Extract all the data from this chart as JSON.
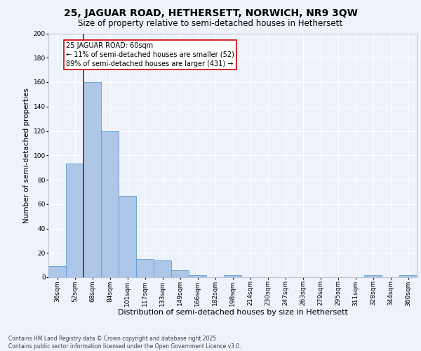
{
  "title1": "25, JAGUAR ROAD, HETHERSETT, NORWICH, NR9 3QW",
  "title2": "Size of property relative to semi-detached houses in Hethersett",
  "categories": [
    "36sqm",
    "52sqm",
    "68sqm",
    "84sqm",
    "101sqm",
    "117sqm",
    "133sqm",
    "149sqm",
    "166sqm",
    "182sqm",
    "198sqm",
    "214sqm",
    "230sqm",
    "247sqm",
    "263sqm",
    "279sqm",
    "295sqm",
    "311sqm",
    "328sqm",
    "344sqm",
    "360sqm"
  ],
  "values": [
    9,
    93,
    160,
    120,
    67,
    15,
    14,
    6,
    2,
    0,
    2,
    0,
    0,
    0,
    0,
    0,
    0,
    0,
    2,
    0,
    2
  ],
  "bar_color": "#aec6e8",
  "bar_edge_color": "#5a9fd4",
  "xlabel": "Distribution of semi-detached houses by size in Hethersett",
  "ylabel": "Number of semi-detached properties",
  "ylim": [
    0,
    200
  ],
  "yticks": [
    0,
    20,
    40,
    60,
    80,
    100,
    120,
    140,
    160,
    180,
    200
  ],
  "vline_x": 1.5,
  "vline_color": "#cc0000",
  "annotation_title": "25 JAGUAR ROAD: 60sqm",
  "annotation_line1": "← 11% of semi-detached houses are smaller (52)",
  "annotation_line2": "89% of semi-detached houses are larger (431) →",
  "annotation_box_color": "#cc0000",
  "footer1": "Contains HM Land Registry data © Crown copyright and database right 2025.",
  "footer2": "Contains public sector information licensed under the Open Government Licence v3.0.",
  "background_color": "#eef2fa",
  "grid_color": "#ffffff",
  "title1_fontsize": 10,
  "title2_fontsize": 8.5,
  "xlabel_fontsize": 8,
  "ylabel_fontsize": 7.5,
  "tick_fontsize": 6.5,
  "annotation_fontsize": 7,
  "footer_fontsize": 5.5
}
